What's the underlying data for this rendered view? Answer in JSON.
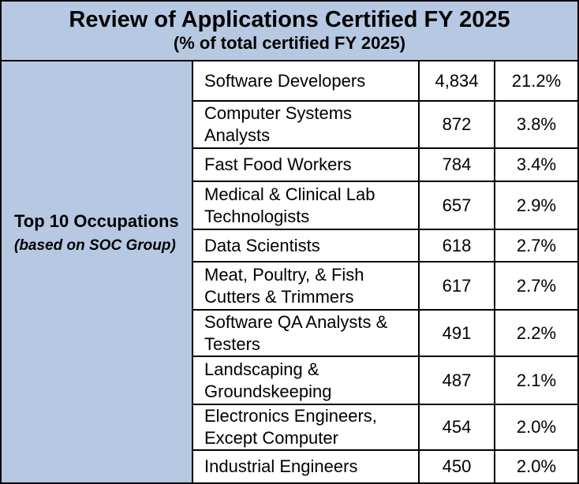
{
  "header": {
    "title": "Review of Applications Certified FY 2025",
    "subtitle": "(% of total certified FY 2025)"
  },
  "left": {
    "title": "Top 10 Occupations",
    "note": "(based on SOC Group)"
  },
  "rows": [
    {
      "occupation": "Software Developers",
      "count": "4,834",
      "percent": "21.2%"
    },
    {
      "occupation": "Computer Systems Analysts",
      "count": "872",
      "percent": "3.8%"
    },
    {
      "occupation": "Fast Food Workers",
      "count": "784",
      "percent": "3.4%"
    },
    {
      "occupation": "Medical & Clinical Lab Technologists",
      "count": "657",
      "percent": "2.9%"
    },
    {
      "occupation": "Data Scientists",
      "count": "618",
      "percent": "2.7%"
    },
    {
      "occupation": "Meat, Poultry, & Fish Cutters & Trimmers",
      "count": "617",
      "percent": "2.7%"
    },
    {
      "occupation": "Software QA Analysts & Testers",
      "count": "491",
      "percent": "2.2%"
    },
    {
      "occupation": "Landscaping & Groundskeeping",
      "count": "487",
      "percent": "2.1%"
    },
    {
      "occupation": "Electronics Engineers, Except Computer",
      "count": "454",
      "percent": "2.0%"
    },
    {
      "occupation": "Industrial Engineers",
      "count": "450",
      "percent": "2.0%"
    }
  ]
}
